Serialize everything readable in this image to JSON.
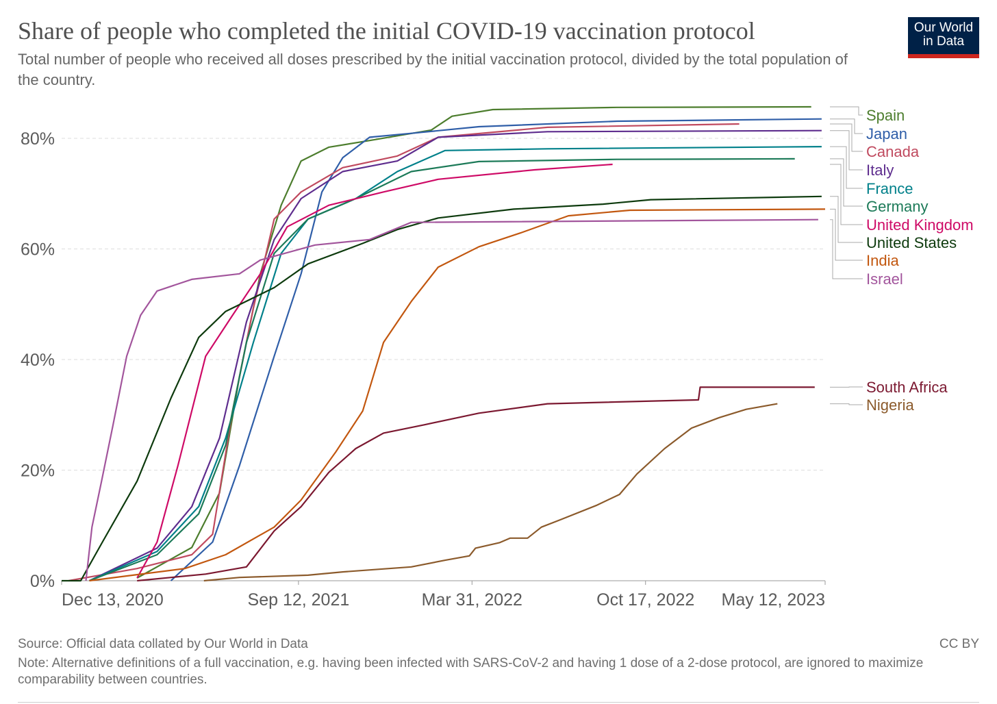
{
  "header": {
    "title": "Share of people who completed the initial COVID-19 vaccination protocol",
    "subtitle": "Total number of people who received all doses prescribed by the initial vaccination protocol, divided by the total population of the country.",
    "logo_line1": "Our World",
    "logo_line2": "in Data"
  },
  "footer": {
    "source": "Source: Official data collated by Our World in Data",
    "license": "CC BY",
    "note": "Note: Alternative definitions of a full vaccination, e.g. having been infected with SARS-CoV-2 and having 1 dose of a 2-dose protocol, are ignored to maximize comparability between countries."
  },
  "chart_data": {
    "type": "line",
    "title": "Share of people who completed the initial COVID-19 vaccination protocol",
    "x_unit": "days since Dec 13, 2020",
    "xlim": [
      0,
      880
    ],
    "ylim": [
      0,
      86
    ],
    "x_ticks": [
      {
        "value": 0,
        "label": "Dec 13, 2020"
      },
      {
        "value": 273,
        "label": "Sep 12, 2021"
      },
      {
        "value": 473,
        "label": "Mar 31, 2022"
      },
      {
        "value": 673,
        "label": "Oct 17, 2022"
      },
      {
        "value": 880,
        "label": "May 12, 2023"
      }
    ],
    "y_ticks": [
      {
        "value": 0,
        "label": "0%"
      },
      {
        "value": 20,
        "label": "20%"
      },
      {
        "value": 40,
        "label": "40%"
      },
      {
        "value": 60,
        "label": "60%"
      },
      {
        "value": 80,
        "label": "80%"
      }
    ],
    "grid": "horizontal dashed",
    "legend": "right, end-of-line labels",
    "series": [
      {
        "name": "Spain",
        "color": "#4c7d2d",
        "points": [
          [
            87,
            0.5
          ],
          [
            150,
            6
          ],
          [
            182,
            15.9
          ],
          [
            205,
            36.9
          ],
          [
            229,
            55.5
          ],
          [
            253,
            67.9
          ],
          [
            276,
            75.9
          ],
          [
            308,
            78.4
          ],
          [
            355,
            79.6
          ],
          [
            426,
            81.5
          ],
          [
            450,
            84
          ],
          [
            497,
            85.2
          ],
          [
            640,
            85.6
          ],
          [
            864,
            85.7
          ]
        ]
      },
      {
        "name": "Japan",
        "color": "#2f5ea8",
        "points": [
          [
            126,
            0
          ],
          [
            174,
            7
          ],
          [
            205,
            20.8
          ],
          [
            245,
            40.6
          ],
          [
            276,
            55.5
          ],
          [
            300,
            70.3
          ],
          [
            324,
            76.5
          ],
          [
            355,
            80.2
          ],
          [
            403,
            80.9
          ],
          [
            481,
            82.1
          ],
          [
            640,
            83.1
          ],
          [
            876,
            83.5
          ]
        ]
      },
      {
        "name": "Canada",
        "color": "#c04a5f",
        "points": [
          [
            8,
            0
          ],
          [
            87,
            2.2
          ],
          [
            150,
            4.7
          ],
          [
            174,
            8.4
          ],
          [
            197,
            30.7
          ],
          [
            221,
            49.3
          ],
          [
            245,
            65.4
          ],
          [
            276,
            70.3
          ],
          [
            324,
            74.7
          ],
          [
            387,
            76.8
          ],
          [
            434,
            80.2
          ],
          [
            560,
            82
          ],
          [
            781,
            82.6
          ]
        ]
      },
      {
        "name": "Italy",
        "color": "#5e2d8e",
        "points": [
          [
            32,
            0
          ],
          [
            110,
            5.9
          ],
          [
            150,
            13.4
          ],
          [
            182,
            25.8
          ],
          [
            213,
            46.8
          ],
          [
            245,
            61.7
          ],
          [
            276,
            69.1
          ],
          [
            324,
            74
          ],
          [
            387,
            75.9
          ],
          [
            434,
            80.2
          ],
          [
            560,
            81.2
          ],
          [
            876,
            81.4
          ]
        ]
      },
      {
        "name": "France",
        "color": "#00808a",
        "points": [
          [
            32,
            0
          ],
          [
            110,
            5.3
          ],
          [
            158,
            13.4
          ],
          [
            189,
            25.8
          ],
          [
            221,
            43.1
          ],
          [
            253,
            59.2
          ],
          [
            284,
            65.4
          ],
          [
            339,
            69.1
          ],
          [
            387,
            74
          ],
          [
            442,
            77.8
          ],
          [
            560,
            78.1
          ],
          [
            876,
            78.5
          ]
        ]
      },
      {
        "name": "Germany",
        "color": "#1c7a58",
        "points": [
          [
            32,
            0
          ],
          [
            110,
            4.7
          ],
          [
            158,
            12.1
          ],
          [
            189,
            24.5
          ],
          [
            213,
            43.1
          ],
          [
            245,
            59.2
          ],
          [
            284,
            65.4
          ],
          [
            339,
            69.1
          ],
          [
            403,
            74
          ],
          [
            481,
            75.8
          ],
          [
            640,
            76.2
          ],
          [
            845,
            76.3
          ]
        ]
      },
      {
        "name": "United Kingdom",
        "color": "#ce0a66",
        "points": [
          [
            87,
            0.5
          ],
          [
            110,
            7
          ],
          [
            134,
            20.8
          ],
          [
            166,
            40.6
          ],
          [
            197,
            48
          ],
          [
            229,
            55.5
          ],
          [
            260,
            64
          ],
          [
            308,
            67.9
          ],
          [
            371,
            70.3
          ],
          [
            434,
            72.6
          ],
          [
            545,
            74.3
          ],
          [
            635,
            75.3
          ]
        ]
      },
      {
        "name": "United States",
        "color": "#0d3a0d",
        "points": [
          [
            0,
            0
          ],
          [
            22,
            0
          ],
          [
            47,
            7
          ],
          [
            87,
            18
          ],
          [
            126,
            33
          ],
          [
            158,
            44
          ],
          [
            189,
            48.7
          ],
          [
            245,
            53
          ],
          [
            284,
            57.3
          ],
          [
            347,
            61
          ],
          [
            387,
            63.5
          ],
          [
            434,
            65.6
          ],
          [
            521,
            67.2
          ],
          [
            624,
            68.1
          ],
          [
            679,
            68.9
          ],
          [
            876,
            69.5
          ]
        ]
      },
      {
        "name": "India",
        "color": "#c2570f",
        "points": [
          [
            32,
            0
          ],
          [
            142,
            2.2
          ],
          [
            189,
            4.7
          ],
          [
            245,
            9.7
          ],
          [
            276,
            14.6
          ],
          [
            316,
            23.3
          ],
          [
            347,
            30.7
          ],
          [
            371,
            43.1
          ],
          [
            403,
            50.5
          ],
          [
            434,
            56.7
          ],
          [
            481,
            60.4
          ],
          [
            529,
            62.9
          ],
          [
            584,
            66
          ],
          [
            655,
            67
          ],
          [
            880,
            67.2
          ]
        ]
      },
      {
        "name": "Israel",
        "color": "#a2559c",
        "points": [
          [
            28,
            0
          ],
          [
            35,
            9.7
          ],
          [
            46,
            18
          ],
          [
            59,
            28
          ],
          [
            75,
            40.6
          ],
          [
            91,
            48
          ],
          [
            110,
            52.4
          ],
          [
            150,
            54.5
          ],
          [
            205,
            55.5
          ],
          [
            229,
            58
          ],
          [
            292,
            60.7
          ],
          [
            355,
            61.7
          ],
          [
            403,
            64.8
          ],
          [
            872,
            65.3
          ]
        ]
      },
      {
        "name": "South Africa",
        "color": "#7b1830",
        "points": [
          [
            87,
            0
          ],
          [
            166,
            1.2
          ],
          [
            213,
            2.5
          ],
          [
            245,
            9
          ],
          [
            276,
            13.4
          ],
          [
            308,
            19.6
          ],
          [
            339,
            23.9
          ],
          [
            371,
            26.7
          ],
          [
            418,
            28.2
          ],
          [
            481,
            30.3
          ],
          [
            560,
            32
          ],
          [
            734,
            32.7
          ],
          [
            736,
            35
          ],
          [
            868,
            35
          ]
        ]
      },
      {
        "name": "Nigeria",
        "color": "#8b5a2b",
        "points": [
          [
            164,
            0
          ],
          [
            205,
            0.6
          ],
          [
            284,
            1
          ],
          [
            324,
            1.6
          ],
          [
            403,
            2.5
          ],
          [
            442,
            3.7
          ],
          [
            470,
            4.5
          ],
          [
            477,
            5.9
          ],
          [
            505,
            6.9
          ],
          [
            517,
            7.7
          ],
          [
            537,
            7.7
          ],
          [
            553,
            9.7
          ],
          [
            576,
            11.1
          ],
          [
            616,
            13.6
          ],
          [
            643,
            15.6
          ],
          [
            663,
            19.3
          ],
          [
            695,
            23.9
          ],
          [
            726,
            27.6
          ],
          [
            758,
            29.5
          ],
          [
            789,
            31
          ],
          [
            825,
            32
          ]
        ]
      }
    ]
  }
}
